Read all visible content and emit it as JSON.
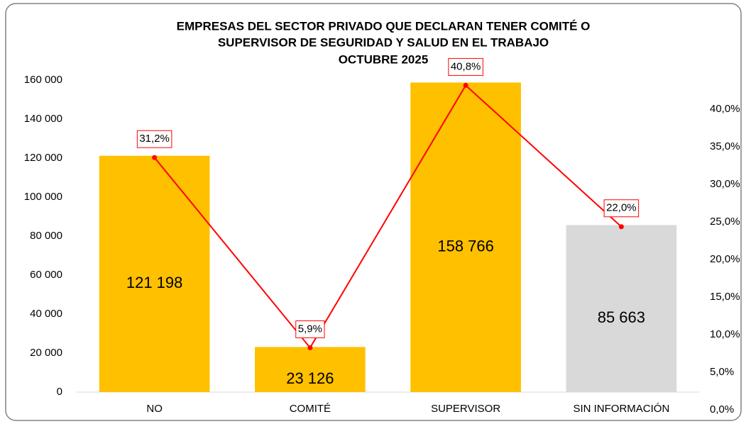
{
  "chart_data": {
    "type": "bar",
    "title": [
      "EMPRESAS DEL SECTOR PRIVADO QUE DECLARAN TENER COMITÉ O",
      "SUPERVISOR DE SEGURIDAD Y SALUD EN EL TRABAJO",
      "OCTUBRE 2025"
    ],
    "categories": [
      "NO",
      "COMITÉ",
      "SUPERVISOR",
      "SIN INFORMACIÓN"
    ],
    "series": [
      {
        "type": "bar",
        "colors": [
          "#ffc000",
          "#ffc000",
          "#ffc000",
          "#d9d9d9"
        ],
        "values": [
          121198,
          23126,
          158766,
          85663
        ],
        "value_labels": [
          "121 198",
          "23 126",
          "158 766",
          "85 663"
        ]
      },
      {
        "type": "line",
        "color": "#ff0000",
        "axis": "y2",
        "values": [
          31.2,
          5.9,
          40.8,
          22.0
        ],
        "value_labels": [
          "31,2%",
          "5,9%",
          "40,8%",
          "22,0%"
        ]
      }
    ],
    "ylim": [
      0,
      160000
    ],
    "yticks": [
      0,
      {
        "value": 20000,
        "label": "20 000"
      },
      {
        "value": 40000,
        "label": "40 000"
      },
      {
        "value": 60000,
        "label": "60 000"
      },
      {
        "value": 80000,
        "label": "80 000"
      },
      {
        "value": 100000,
        "label": "100 000"
      },
      {
        "value": 120000,
        "label": "120 000"
      },
      {
        "value": 140000,
        "label": "140 000"
      },
      {
        "value": 160000,
        "label": "160 000"
      }
    ],
    "y2lim": [
      0,
      41.5
    ],
    "y2ticks": [
      {
        "value": 0,
        "label": "0,0%"
      },
      {
        "value": 5,
        "label": "5,0%"
      },
      {
        "value": 10,
        "label": "10,0%"
      },
      {
        "value": 15,
        "label": "15,0%"
      },
      {
        "value": 20,
        "label": "20,0%"
      },
      {
        "value": 25,
        "label": "25,0%"
      },
      {
        "value": 30,
        "label": "30,0%"
      },
      {
        "value": 35,
        "label": "35,0%"
      },
      {
        "value": 40,
        "label": "40,0%"
      }
    ]
  }
}
